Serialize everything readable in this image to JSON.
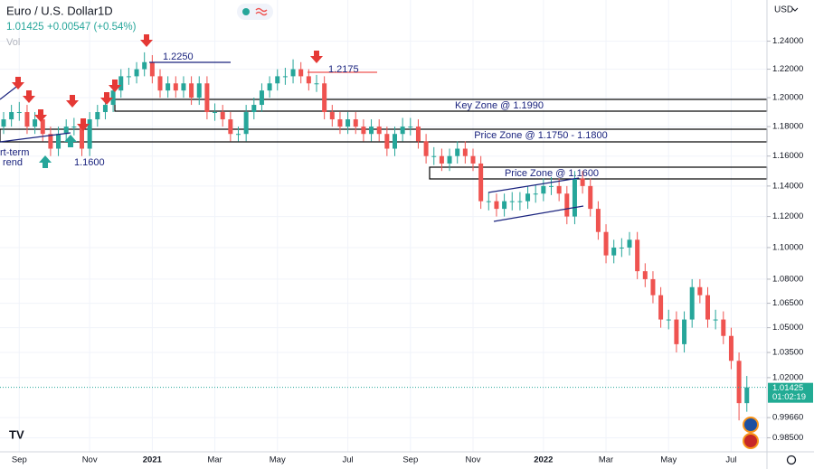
{
  "header": {
    "symbol": "Euro / U.S. Dollar",
    "interval": "1D",
    "change": "+0.00547 (+0.54%)",
    "vol": "Vol"
  },
  "chart_data": {
    "type": "candlestick",
    "currency": "USD",
    "log_scale": true,
    "grid": true,
    "up_color": "#26a69a",
    "down_color": "#ef5350",
    "ylim": [
      0.977,
      1.27
    ],
    "yticks": [
      {
        "value": 1.24,
        "label": "1.24000"
      },
      {
        "value": 1.22,
        "label": "1.22000"
      },
      {
        "value": 1.2,
        "label": "1.20000"
      },
      {
        "value": 1.18,
        "label": "1.18000"
      },
      {
        "value": 1.16,
        "label": "1.16000"
      },
      {
        "value": 1.14,
        "label": "1.14000"
      },
      {
        "value": 1.12,
        "label": "1.12000"
      },
      {
        "value": 1.1,
        "label": "1.10000"
      },
      {
        "value": 1.08,
        "label": "1.08000"
      },
      {
        "value": 1.065,
        "label": "1.06500"
      },
      {
        "value": 1.05,
        "label": "1.05000"
      },
      {
        "value": 1.035,
        "label": "1.03500"
      },
      {
        "value": 1.02,
        "label": "1.02000"
      },
      {
        "value": 0.9966,
        "label": "0.99660"
      },
      {
        "value": 0.985,
        "label": "0.98500"
      }
    ],
    "categories": [
      null,
      null,
      "Sep",
      null,
      null,
      null,
      null,
      null,
      null,
      null,
      null,
      "Nov",
      null,
      null,
      null,
      null,
      null,
      null,
      null,
      "2021",
      null,
      null,
      null,
      null,
      null,
      null,
      null,
      "Mar",
      null,
      null,
      null,
      null,
      null,
      null,
      null,
      "May",
      null,
      null,
      null,
      null,
      null,
      null,
      null,
      null,
      "Jul",
      null,
      null,
      null,
      null,
      null,
      null,
      null,
      "Sep",
      null,
      null,
      null,
      null,
      null,
      null,
      null,
      "Nov",
      null,
      null,
      null,
      null,
      null,
      null,
      null,
      null,
      "2022",
      null,
      null,
      null,
      null,
      null,
      null,
      null,
      "Mar",
      null,
      null,
      null,
      null,
      null,
      null,
      null,
      "May",
      null,
      null,
      null,
      null,
      null,
      null,
      null,
      "Jul",
      null,
      null
    ],
    "ohlc": [
      [
        1.18,
        1.19,
        1.175,
        1.185
      ],
      [
        1.185,
        1.195,
        1.18,
        1.19
      ],
      [
        1.19,
        1.197,
        1.184,
        1.19
      ],
      [
        1.19,
        1.195,
        1.175,
        1.18
      ],
      [
        1.18,
        1.19,
        1.175,
        1.185
      ],
      [
        1.185,
        1.19,
        1.17,
        1.175
      ],
      [
        1.175,
        1.18,
        1.16,
        1.165
      ],
      [
        1.165,
        1.18,
        1.16,
        1.175
      ],
      [
        1.175,
        1.185,
        1.17,
        1.18
      ],
      [
        1.18,
        1.186,
        1.174,
        1.18
      ],
      [
        1.18,
        1.185,
        1.16,
        1.165
      ],
      [
        1.165,
        1.19,
        1.16,
        1.185
      ],
      [
        1.185,
        1.195,
        1.18,
        1.19
      ],
      [
        1.19,
        1.2,
        1.185,
        1.195
      ],
      [
        1.195,
        1.21,
        1.19,
        1.205
      ],
      [
        1.205,
        1.22,
        1.2,
        1.215
      ],
      [
        1.215,
        1.221,
        1.209,
        1.215
      ],
      [
        1.215,
        1.225,
        1.21,
        1.22
      ],
      [
        1.22,
        1.232,
        1.215,
        1.225
      ],
      [
        1.225,
        1.23,
        1.21,
        1.215
      ],
      [
        1.215,
        1.22,
        1.2,
        1.205
      ],
      [
        1.205,
        1.215,
        1.2,
        1.21
      ],
      [
        1.21,
        1.215,
        1.2,
        1.205
      ],
      [
        1.205,
        1.215,
        1.2,
        1.21
      ],
      [
        1.21,
        1.215,
        1.195,
        1.2
      ],
      [
        1.2,
        1.215,
        1.195,
        1.21
      ],
      [
        1.21,
        1.215,
        1.185,
        1.19
      ],
      [
        1.19,
        1.196,
        1.184,
        1.19
      ],
      [
        1.19,
        1.195,
        1.18,
        1.185
      ],
      [
        1.185,
        1.19,
        1.17,
        1.175
      ],
      [
        1.175,
        1.18,
        1.17,
        1.175
      ],
      [
        1.175,
        1.195,
        1.17,
        1.19
      ],
      [
        1.19,
        1.2,
        1.185,
        1.195
      ],
      [
        1.195,
        1.21,
        1.19,
        1.205
      ],
      [
        1.205,
        1.215,
        1.2,
        1.21
      ],
      [
        1.21,
        1.22,
        1.205,
        1.215
      ],
      [
        1.215,
        1.221,
        1.209,
        1.215
      ],
      [
        1.215,
        1.227,
        1.21,
        1.22
      ],
      [
        1.22,
        1.225,
        1.21,
        1.215
      ],
      [
        1.215,
        1.22,
        1.205,
        1.21
      ],
      [
        1.21,
        1.216,
        1.204,
        1.21
      ],
      [
        1.21,
        1.215,
        1.185,
        1.19
      ],
      [
        1.19,
        1.195,
        1.18,
        1.185
      ],
      [
        1.185,
        1.19,
        1.175,
        1.18
      ],
      [
        1.18,
        1.19,
        1.175,
        1.185
      ],
      [
        1.185,
        1.19,
        1.175,
        1.18
      ],
      [
        1.18,
        1.185,
        1.17,
        1.175
      ],
      [
        1.175,
        1.185,
        1.17,
        1.18
      ],
      [
        1.18,
        1.185,
        1.17,
        1.175
      ],
      [
        1.175,
        1.18,
        1.16,
        1.165
      ],
      [
        1.165,
        1.18,
        1.16,
        1.175
      ],
      [
        1.175,
        1.186,
        1.17,
        1.18
      ],
      [
        1.18,
        1.186,
        1.174,
        1.18
      ],
      [
        1.18,
        1.185,
        1.165,
        1.17
      ],
      [
        1.17,
        1.175,
        1.155,
        1.16
      ],
      [
        1.16,
        1.166,
        1.154,
        1.16
      ],
      [
        1.16,
        1.165,
        1.15,
        1.155
      ],
      [
        1.155,
        1.165,
        1.15,
        1.16
      ],
      [
        1.16,
        1.17,
        1.155,
        1.165
      ],
      [
        1.165,
        1.17,
        1.155,
        1.16
      ],
      [
        1.16,
        1.165,
        1.15,
        1.155
      ],
      [
        1.155,
        1.16,
        1.125,
        1.13
      ],
      [
        1.13,
        1.136,
        1.124,
        1.13
      ],
      [
        1.13,
        1.135,
        1.12,
        1.125
      ],
      [
        1.125,
        1.135,
        1.12,
        1.13
      ],
      [
        1.13,
        1.136,
        1.124,
        1.13
      ],
      [
        1.13,
        1.136,
        1.124,
        1.13
      ],
      [
        1.13,
        1.14,
        1.125,
        1.135
      ],
      [
        1.135,
        1.141,
        1.129,
        1.135
      ],
      [
        1.135,
        1.145,
        1.13,
        1.14
      ],
      [
        1.14,
        1.146,
        1.134,
        1.14
      ],
      [
        1.14,
        1.145,
        1.13,
        1.135
      ],
      [
        1.135,
        1.14,
        1.115,
        1.12
      ],
      [
        1.12,
        1.15,
        1.115,
        1.145
      ],
      [
        1.145,
        1.15,
        1.135,
        1.14
      ],
      [
        1.14,
        1.145,
        1.12,
        1.125
      ],
      [
        1.125,
        1.13,
        1.105,
        1.11
      ],
      [
        1.11,
        1.115,
        1.09,
        1.095
      ],
      [
        1.095,
        1.105,
        1.09,
        1.1
      ],
      [
        1.1,
        1.106,
        1.094,
        1.1
      ],
      [
        1.1,
        1.11,
        1.095,
        1.105
      ],
      [
        1.105,
        1.11,
        1.08,
        1.085
      ],
      [
        1.085,
        1.09,
        1.075,
        1.08
      ],
      [
        1.08,
        1.085,
        1.065,
        1.07
      ],
      [
        1.07,
        1.075,
        1.05,
        1.055
      ],
      [
        1.055,
        1.061,
        1.049,
        1.055
      ],
      [
        1.055,
        1.06,
        1.035,
        1.04
      ],
      [
        1.04,
        1.06,
        1.035,
        1.055
      ],
      [
        1.055,
        1.08,
        1.05,
        1.075
      ],
      [
        1.075,
        1.08,
        1.065,
        1.07
      ],
      [
        1.07,
        1.075,
        1.05,
        1.055
      ],
      [
        1.055,
        1.061,
        1.049,
        1.055
      ],
      [
        1.055,
        1.06,
        1.04,
        1.045
      ],
      [
        1.045,
        1.05,
        1.025,
        1.03
      ],
      [
        1.03,
        1.035,
        0.995,
        1.005
      ],
      [
        1.005,
        1.021,
        1.0,
        1.01425
      ]
    ],
    "last_price": 1.01425,
    "countdown": "01:02:19",
    "annotations": [
      "1.2250",
      "1.2175",
      "1.1600",
      "Key Zone @ 1.1990",
      "Price Zone @ 1.1750 - 1.1800",
      "Price Zone @ 1.1600"
    ],
    "trend_label": [
      "rt-term",
      "rend"
    ]
  }
}
